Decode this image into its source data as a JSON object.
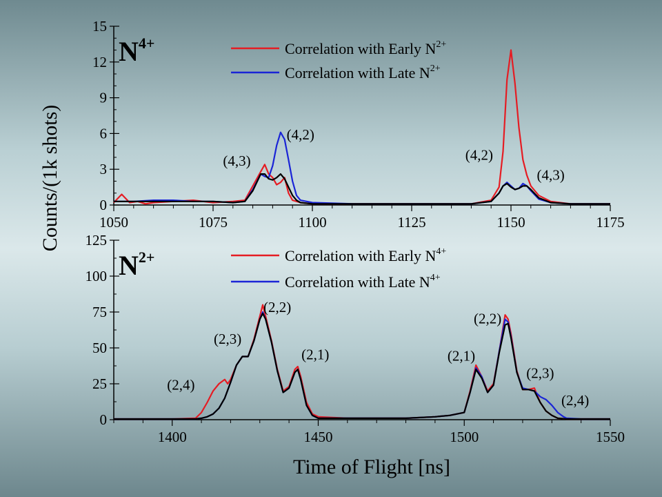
{
  "ylabel": "Counts/(1k shots)",
  "xlabel": "Time of Flight [ns]",
  "chart_data": [
    {
      "type": "line",
      "ion_label": {
        "base": "N",
        "charge": "4+"
      },
      "xlim": [
        1050,
        1175
      ],
      "ylim": [
        0,
        15
      ],
      "xticks": [
        1050,
        1075,
        1100,
        1125,
        1150,
        1175
      ],
      "yticks": [
        0,
        3,
        6,
        9,
        12,
        15
      ],
      "legend_position": "top-right",
      "series": [
        {
          "name": "Correlation with Early N2+",
          "legend": {
            "prefix": "Correlation with Early N",
            "sup": "2+"
          },
          "color": "#e51c23",
          "x": [
            1050,
            1052,
            1054,
            1056,
            1058,
            1060,
            1065,
            1070,
            1075,
            1080,
            1083,
            1085,
            1087,
            1088,
            1089,
            1090,
            1091,
            1092,
            1093,
            1094,
            1095,
            1097,
            1100,
            1110,
            1120,
            1130,
            1140,
            1145,
            1147,
            1148,
            1149,
            1150,
            1151,
            1152,
            1153,
            1154,
            1155,
            1157,
            1160,
            1165,
            1170,
            1175
          ],
          "y": [
            0.2,
            0.9,
            0.2,
            0.3,
            0.1,
            0.2,
            0.3,
            0.4,
            0.2,
            0.3,
            0.4,
            1.6,
            2.8,
            3.4,
            2.6,
            2.3,
            1.7,
            1.9,
            2.3,
            1.0,
            0.4,
            0.2,
            0.1,
            0.1,
            0.1,
            0.1,
            0.1,
            0.4,
            1.5,
            4.5,
            10.5,
            13.0,
            10.2,
            6.5,
            3.8,
            2.5,
            1.6,
            0.8,
            0.3,
            0.1,
            0.1,
            0.1
          ]
        },
        {
          "name": "Correlation with Late N2+",
          "legend": {
            "prefix": "Correlation with Late N",
            "sup": "2+"
          },
          "color": "#1a24d6",
          "x": [
            1050,
            1055,
            1060,
            1065,
            1070,
            1075,
            1080,
            1083,
            1085,
            1087,
            1088,
            1089,
            1090,
            1091,
            1092,
            1093,
            1094,
            1095,
            1096,
            1097,
            1100,
            1110,
            1120,
            1130,
            1140,
            1145,
            1147,
            1148,
            1149,
            1150,
            1151,
            1152,
            1153,
            1154,
            1155,
            1157,
            1160,
            1165,
            1170,
            1175
          ],
          "y": [
            0.3,
            0.3,
            0.4,
            0.4,
            0.3,
            0.3,
            0.2,
            0.3,
            1.3,
            2.6,
            2.4,
            2.3,
            3.3,
            5.0,
            6.1,
            5.5,
            3.8,
            2.0,
            0.8,
            0.4,
            0.2,
            0.1,
            0.1,
            0.1,
            0.1,
            0.3,
            1.0,
            1.6,
            1.9,
            1.6,
            1.3,
            1.4,
            1.8,
            1.6,
            1.2,
            0.5,
            0.2,
            0.1,
            0.1,
            0.1
          ]
        },
        {
          "name": "black",
          "color": "#000000",
          "x": [
            1050,
            1055,
            1060,
            1065,
            1070,
            1075,
            1080,
            1083,
            1085,
            1087,
            1088,
            1089,
            1090,
            1091,
            1092,
            1093,
            1094,
            1095,
            1096,
            1097,
            1100,
            1110,
            1120,
            1130,
            1140,
            1145,
            1147,
            1148,
            1149,
            1150,
            1151,
            1152,
            1153,
            1154,
            1155,
            1157,
            1160,
            1165,
            1170,
            1175
          ],
          "y": [
            0.3,
            0.3,
            0.3,
            0.3,
            0.3,
            0.3,
            0.2,
            0.3,
            1.2,
            2.6,
            2.6,
            2.2,
            2.1,
            2.3,
            2.6,
            2.2,
            1.5,
            0.8,
            0.4,
            0.2,
            0.1,
            0.1,
            0.1,
            0.1,
            0.1,
            0.3,
            1.0,
            1.6,
            1.8,
            1.5,
            1.3,
            1.4,
            1.6,
            1.6,
            1.3,
            0.6,
            0.2,
            0.1,
            0.1,
            0.1
          ]
        }
      ],
      "annotations": [
        {
          "text": "(4,3)",
          "x": 1081,
          "y": 3.3
        },
        {
          "text": "(4,2)",
          "x": 1097,
          "y": 5.5
        },
        {
          "text": "(4,2)",
          "x": 1142,
          "y": 3.8
        },
        {
          "text": "(4,3)",
          "x": 1160,
          "y": 2.1
        }
      ]
    },
    {
      "type": "line",
      "ion_label": {
        "base": "N",
        "charge": "2+"
      },
      "xlim": [
        1380,
        1550
      ],
      "ylim": [
        0,
        125
      ],
      "xticks": [
        1400,
        1450,
        1500,
        1550
      ],
      "yticks": [
        0,
        25,
        50,
        75,
        100,
        125
      ],
      "legend_position": "top-right",
      "series": [
        {
          "name": "Correlation with Early N4+",
          "legend": {
            "prefix": "Correlation with Early N",
            "sup": "4+"
          },
          "color": "#e51c23",
          "x": [
            1380,
            1390,
            1400,
            1408,
            1410,
            1412,
            1414,
            1416,
            1418,
            1419,
            1420,
            1422,
            1424,
            1426,
            1428,
            1430,
            1431,
            1432,
            1434,
            1436,
            1438,
            1440,
            1442,
            1443,
            1444,
            1446,
            1448,
            1450,
            1460,
            1470,
            1480,
            1490,
            1495,
            1500,
            1502,
            1504,
            1506,
            1508,
            1510,
            1512,
            1514,
            1515,
            1516,
            1518,
            1520,
            1522,
            1524,
            1526,
            1528,
            1530,
            1532,
            1535,
            1540,
            1550
          ],
          "y": [
            0.5,
            0.5,
            0.5,
            1,
            5,
            12,
            20,
            25,
            28,
            25,
            28,
            38,
            44,
            44,
            56,
            72,
            80,
            72,
            55,
            35,
            20,
            23,
            35,
            37,
            30,
            12,
            4,
            2,
            1,
            1,
            1,
            2,
            3,
            5,
            20,
            38,
            30,
            20,
            25,
            48,
            73,
            70,
            60,
            34,
            21,
            21,
            22,
            12,
            6,
            3,
            1,
            0.5,
            0.5,
            0.5
          ]
        },
        {
          "name": "Correlation with Late N4+",
          "legend": {
            "prefix": "Correlation with Late N",
            "sup": "4+"
          },
          "color": "#1a24d6",
          "x": [
            1380,
            1390,
            1400,
            1408,
            1410,
            1412,
            1414,
            1416,
            1418,
            1420,
            1422,
            1424,
            1426,
            1428,
            1430,
            1431,
            1432,
            1434,
            1436,
            1438,
            1440,
            1442,
            1443,
            1444,
            1446,
            1448,
            1450,
            1460,
            1470,
            1480,
            1490,
            1495,
            1500,
            1502,
            1504,
            1506,
            1508,
            1510,
            1512,
            1514,
            1515,
            1516,
            1518,
            1520,
            1522,
            1524,
            1526,
            1527,
            1528,
            1530,
            1532,
            1534,
            1535,
            1540,
            1550
          ],
          "y": [
            0.5,
            0.5,
            0.5,
            0.5,
            1,
            2,
            4,
            8,
            15,
            26,
            38,
            44,
            44,
            55,
            70,
            75,
            70,
            54,
            34,
            19,
            22,
            33,
            35,
            28,
            10,
            3,
            1,
            1,
            1,
            1,
            2,
            3,
            5,
            19,
            36,
            30,
            19,
            24,
            48,
            70,
            68,
            58,
            33,
            22,
            21,
            20,
            16,
            15,
            14,
            10,
            5,
            2,
            1,
            0.5,
            0.5
          ]
        },
        {
          "name": "black",
          "color": "#000000",
          "x": [
            1380,
            1390,
            1400,
            1408,
            1410,
            1412,
            1414,
            1416,
            1418,
            1420,
            1422,
            1424,
            1426,
            1428,
            1430,
            1431,
            1432,
            1434,
            1436,
            1438,
            1440,
            1442,
            1443,
            1444,
            1446,
            1448,
            1450,
            1460,
            1470,
            1480,
            1490,
            1495,
            1500,
            1502,
            1504,
            1506,
            1508,
            1510,
            1512,
            1514,
            1515,
            1516,
            1518,
            1520,
            1522,
            1524,
            1526,
            1528,
            1530,
            1532,
            1535,
            1540,
            1550
          ],
          "y": [
            0.5,
            0.5,
            0.5,
            0.5,
            1,
            2,
            4,
            8,
            15,
            26,
            38,
            44,
            44,
            55,
            70,
            74,
            70,
            54,
            34,
            19,
            22,
            33,
            35,
            28,
            10,
            3,
            1,
            1,
            1,
            1,
            2,
            3,
            5,
            19,
            35,
            29,
            19,
            24,
            47,
            66,
            67,
            57,
            33,
            21,
            21,
            20,
            12,
            6,
            3,
            1,
            0.5,
            0.5,
            0.5
          ]
        }
      ],
      "annotations": [
        {
          "text": "(2,4)",
          "x": 1403,
          "y": 21
        },
        {
          "text": "(2,3)",
          "x": 1419,
          "y": 53
        },
        {
          "text": "(2,2)",
          "x": 1436,
          "y": 75
        },
        {
          "text": "(2,1)",
          "x": 1449,
          "y": 42
        },
        {
          "text": "(2,1)",
          "x": 1499,
          "y": 41
        },
        {
          "text": "(2,2)",
          "x": 1508,
          "y": 67
        },
        {
          "text": "(2,3)",
          "x": 1526,
          "y": 29
        },
        {
          "text": "(2,4)",
          "x": 1538,
          "y": 10
        }
      ]
    }
  ]
}
